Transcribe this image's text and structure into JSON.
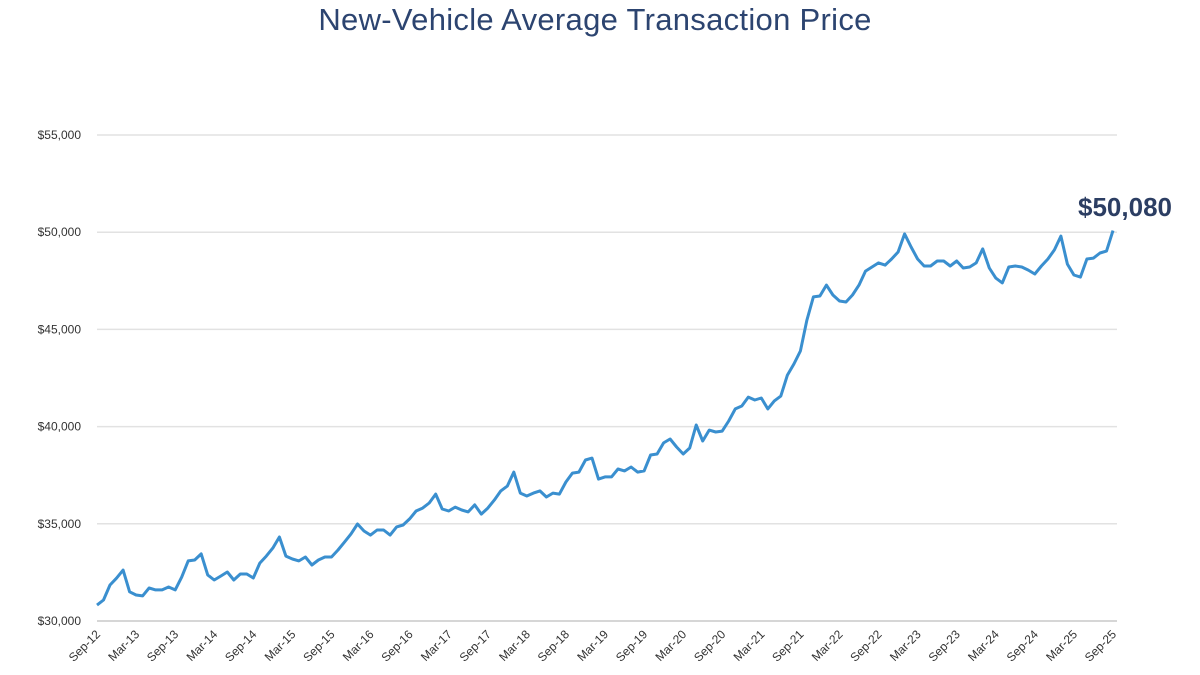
{
  "chart_data": {
    "type": "line",
    "title": "New-Vehicle Average Transaction Price",
    "xlabel": "",
    "ylabel": "",
    "ylim": [
      30000,
      55000
    ],
    "yticks": [
      30000,
      35000,
      40000,
      45000,
      50000,
      55000
    ],
    "ytick_labels": [
      "$30,000",
      "$35,000",
      "$40,000",
      "$45,000",
      "$50,000",
      "$55,000"
    ],
    "xtick_labels": [
      "Sep-12",
      "Mar-13",
      "Sep-13",
      "Mar-14",
      "Sep-14",
      "Mar-15",
      "Sep-15",
      "Mar-16",
      "Sep-16",
      "Mar-17",
      "Sep-17",
      "Mar-18",
      "Sep-18",
      "Mar-19",
      "Sep-19",
      "Mar-20",
      "Sep-20",
      "Mar-21",
      "Sep-21",
      "Mar-22",
      "Sep-22",
      "Mar-23",
      "Sep-23",
      "Mar-24",
      "Sep-24",
      "Mar-25",
      "Sep-25"
    ],
    "grid": "horizontal",
    "legend": "none",
    "line_color": "#3a8fcf",
    "annotation": {
      "text": "$50,080",
      "at": "Sep-25",
      "value": 50080
    },
    "series": [
      {
        "values": [
          30820,
          31080,
          31850,
          32200,
          32620,
          31500,
          31340,
          31290,
          31700,
          31600,
          31600,
          31750,
          31600,
          32260,
          33090,
          33140,
          33450,
          32370,
          32110,
          32310,
          32520,
          32110,
          32420,
          32420,
          32210,
          32980,
          33340,
          33750,
          34320,
          33340,
          33190,
          33090,
          33290,
          32880,
          33140,
          33290,
          33290,
          33650,
          34060,
          34480,
          34990,
          34630,
          34420,
          34680,
          34680,
          34420,
          34840,
          34940,
          35250,
          35660,
          35810,
          36070,
          36530,
          35760,
          35660,
          35860,
          35710,
          35610,
          35970,
          35500,
          35810,
          36220,
          36690,
          36940,
          37660,
          36580,
          36430,
          36580,
          36690,
          36380,
          36580,
          36530,
          37150,
          37610,
          37660,
          38280,
          38380,
          37300,
          37410,
          37410,
          37820,
          37720,
          37920,
          37660,
          37720,
          38540,
          38590,
          39160,
          39360,
          38950,
          38590,
          38900,
          40080,
          39260,
          39820,
          39720,
          39770,
          40290,
          40910,
          41060,
          41520,
          41370,
          41470,
          40910,
          41320,
          41570,
          42650,
          43220,
          43890,
          45480,
          46670,
          46720,
          47280,
          46770,
          46460,
          46410,
          46770,
          47280,
          48000,
          48210,
          48420,
          48310,
          48620,
          48980,
          49910,
          49240,
          48620,
          48260,
          48260,
          48520,
          48520,
          48260,
          48520,
          48160,
          48210,
          48420,
          49140,
          48160,
          47640,
          47390,
          48210,
          48260,
          48210,
          48050,
          47850,
          48260,
          48620,
          49090,
          49800,
          48360,
          47800,
          47690,
          48620,
          48670,
          48930,
          49030,
          50080
        ]
      }
    ]
  }
}
